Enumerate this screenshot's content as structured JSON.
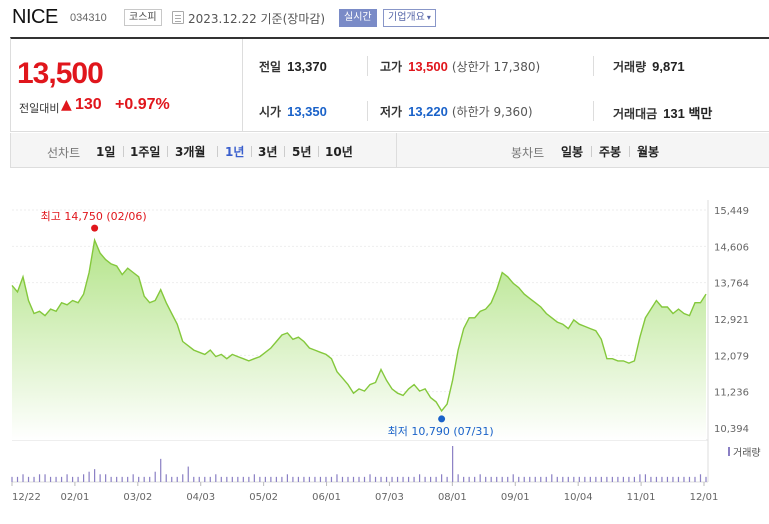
{
  "header": {
    "name": "NICE",
    "code": "034310",
    "market": "코스피",
    "date": "2023.12.22 기준(장마감)",
    "realtime_label": "실시간",
    "overview_label": "기업개요"
  },
  "price": {
    "current": "13,500",
    "change_label": "전일대비",
    "change": "130",
    "change_pct": "+0.97%"
  },
  "stats": {
    "prev_close": {
      "label": "전일",
      "value": "13,370"
    },
    "high": {
      "label": "고가",
      "value": "13,500",
      "extra": "(상한가 17,380)"
    },
    "volume": {
      "label": "거래량",
      "value": "9,871"
    },
    "open": {
      "label": "시가",
      "value": "13,350"
    },
    "low": {
      "label": "저가",
      "value": "13,220",
      "extra": "(하한가 9,360)"
    },
    "amount": {
      "label": "거래대금",
      "value": "131 백만"
    }
  },
  "controls": {
    "line_label": "선차트",
    "periods": [
      "1일",
      "1주일",
      "3개월",
      "1년",
      "3년",
      "5년",
      "10년"
    ],
    "active_period": "1년",
    "candle_label": "봉차트",
    "candle_periods": [
      "일봉",
      "주봉",
      "월봉"
    ]
  },
  "colors": {
    "up": "#e0161c",
    "down": "#1a62c9",
    "accent": "#3a5fcd",
    "line": "#84c83c"
  },
  "chart_data": {
    "type": "area",
    "y_ticks": [
      "15,449",
      "14,606",
      "13,764",
      "12,921",
      "12,079",
      "11,236",
      "10,394"
    ],
    "ylim": [
      10394,
      15449
    ],
    "x_ticks": [
      "12/22",
      "02/01",
      "03/02",
      "04/03",
      "05/02",
      "06/01",
      "07/03",
      "08/01",
      "09/01",
      "10/04",
      "11/01",
      "12/01"
    ],
    "annotations": {
      "max_label": "최고 14,750 (02/06)",
      "min_label": "최저 10,790 (07/31)"
    },
    "volume_legend": "거래량",
    "series": [
      {
        "values": [
          13700,
          13550,
          13900,
          13350,
          13050,
          13100,
          13000,
          13150,
          13100,
          13300,
          13250,
          13350,
          13300,
          13500,
          14000,
          14750,
          14450,
          14300,
          14200,
          14150,
          13950,
          14100,
          14000,
          13900,
          13450,
          13300,
          13350,
          13600,
          13300,
          13050,
          12800,
          12400,
          12300,
          12200,
          12150,
          12100,
          12200,
          12050,
          12100,
          12000,
          12100,
          12050,
          12000,
          11950,
          12000,
          12050,
          12150,
          12250,
          12400,
          12550,
          12600,
          12450,
          12500,
          12400,
          12250,
          12200,
          12150,
          12100,
          12000,
          11700,
          11550,
          11400,
          11200,
          11300,
          11250,
          11400,
          11450,
          11750,
          11500,
          11300,
          11200,
          11150,
          11300,
          11400,
          11250,
          11300,
          11100,
          11000,
          10790,
          10950,
          11500,
          12200,
          12700,
          12950,
          12950,
          13100,
          13150,
          13300,
          13600,
          14000,
          13900,
          13750,
          13650,
          13500,
          13400,
          13300,
          13200,
          13050,
          12950,
          12850,
          12800,
          12700,
          12900,
          12800,
          12750,
          12700,
          12650,
          12450,
          12000,
          12000,
          11950,
          11950,
          11900,
          11950,
          12500,
          12950,
          13150,
          13350,
          13200,
          13200,
          13050,
          13150,
          13050,
          13000,
          13300,
          13300,
          13500
        ]
      }
    ],
    "volume": [
      2,
      2,
      3,
      2,
      2,
      3,
      3,
      2,
      2,
      2,
      3,
      2,
      2,
      3,
      4,
      5,
      3,
      3,
      2,
      2,
      2,
      2,
      3,
      2,
      2,
      2,
      4,
      9,
      3,
      2,
      2,
      3,
      6,
      2,
      2,
      2,
      2,
      3,
      2,
      2,
      2,
      2,
      2,
      2,
      3,
      2,
      2,
      2,
      2,
      2,
      3,
      2,
      2,
      2,
      2,
      2,
      2,
      2,
      2,
      3,
      2,
      2,
      2,
      2,
      2,
      3,
      2,
      2,
      2,
      2,
      2,
      2,
      2,
      2,
      3,
      2,
      2,
      2,
      3,
      2,
      14,
      3,
      2,
      2,
      2,
      3,
      2,
      2,
      2,
      2,
      2,
      3,
      2,
      2,
      2,
      2,
      2,
      2,
      3,
      2,
      2,
      2,
      2,
      2,
      2,
      2,
      2,
      2,
      2,
      2,
      2,
      2,
      2,
      2,
      3,
      3,
      2,
      2,
      2,
      2,
      2,
      2,
      2,
      2,
      2,
      3,
      2
    ]
  }
}
